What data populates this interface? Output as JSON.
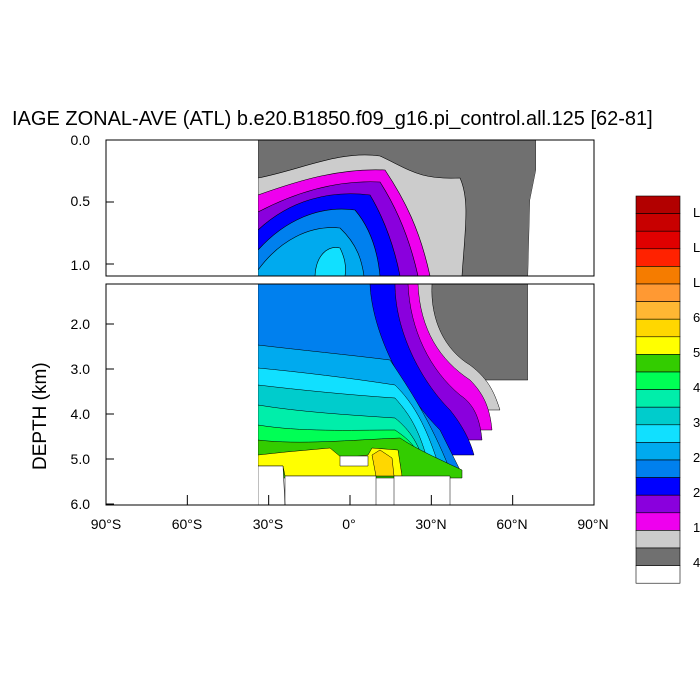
{
  "chart_data": {
    "type": "heatmap",
    "title": "IAGE ZONAL-AVE (ATL) b.e20.B1850.f09_g16.pi_control.all.125 [62-81]",
    "ylabel": "DEPTH (km)",
    "x_ticks": [
      "90°S",
      "60°S",
      "30°S",
      "0°",
      "30°N",
      "60°N",
      "90°N"
    ],
    "x_range": [
      -90,
      90
    ],
    "y_ticks_upper": [
      "0.0",
      "0.5",
      "1.0"
    ],
    "y_ticks_lower": [
      "2.0",
      "3.0",
      "4.0",
      "5.0",
      "6.0"
    ],
    "y_range_upper": [
      0.0,
      1.1
    ],
    "y_range_lower": [
      1.1,
      6.0
    ],
    "y_reversed": true,
    "colorbar": {
      "colors": [
        "#b20000",
        "#c80000",
        "#e00000",
        "#ff2200",
        "#f57c00",
        "#ff9933",
        "#ffb733",
        "#ffd700",
        "#ffff00",
        "#33cc00",
        "#00ff55",
        "#00eeaa",
        "#00cccc",
        "#11e0ff",
        "#00aaee",
        "#0080ee",
        "#0000ff",
        "#8a00dd",
        "#ee00ee",
        "#cccccc",
        "#707070",
        "#ffffff"
      ],
      "labels": [
        "L",
        "L",
        "L",
        "6",
        "5",
        "4",
        "3",
        "2",
        "2",
        "1",
        "4"
      ]
    },
    "approx_depth_age_layers": [
      {
        "color": "#707070",
        "desc": "north of ~40N near surface"
      },
      {
        "color": "#cccccc"
      },
      {
        "color": "#ee00ee"
      },
      {
        "color": "#8a00dd"
      },
      {
        "color": "#0000ff"
      },
      {
        "color": "#0080ee"
      },
      {
        "color": "#00aaee"
      },
      {
        "color": "#11e0ff"
      },
      {
        "color": "#00cccc"
      },
      {
        "color": "#00eeaa"
      },
      {
        "color": "#00ff55"
      },
      {
        "color": "#33cc00"
      },
      {
        "color": "#ffff00"
      },
      {
        "color": "#ffd700"
      }
    ]
  }
}
